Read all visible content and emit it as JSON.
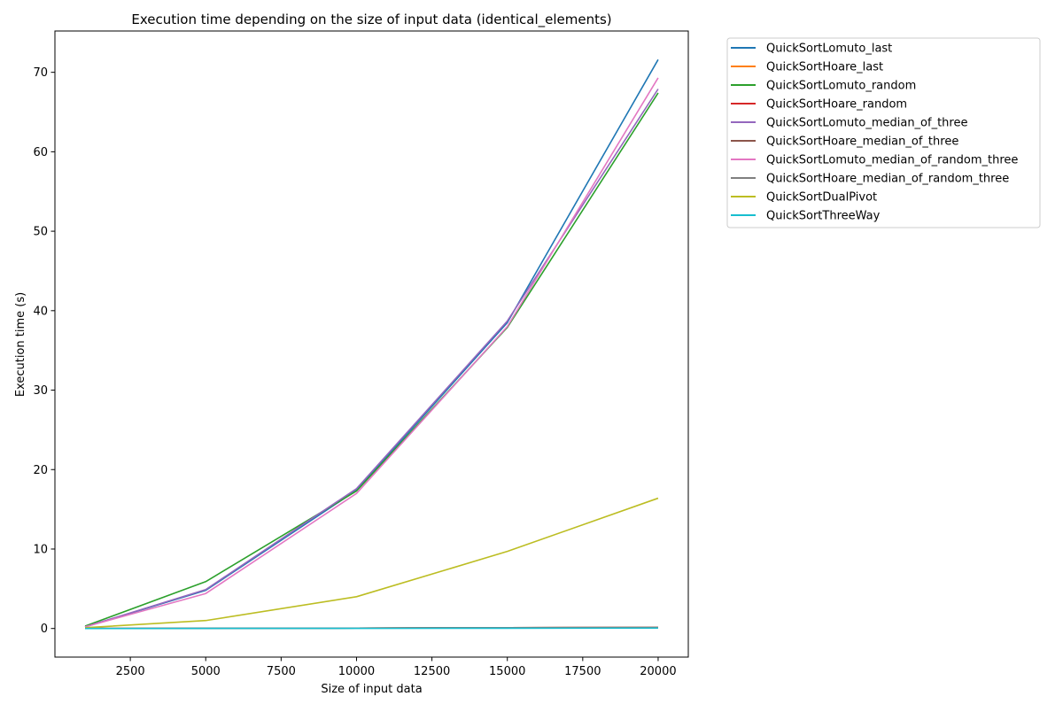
{
  "chart_data": {
    "type": "line",
    "title": "Execution time depending on the size of input data (identical_elements)",
    "xlabel": "Size of input data",
    "ylabel": "Execution time (s)",
    "xlim": [
      0,
      21000
    ],
    "ylim": [
      -3.6,
      75.2
    ],
    "xticks": [
      2500,
      5000,
      7500,
      10000,
      12500,
      15000,
      17500,
      20000
    ],
    "yticks": [
      0,
      10,
      20,
      30,
      40,
      50,
      60,
      70
    ],
    "grid": false,
    "legend_position": "outside right, top",
    "x": [
      1000,
      5000,
      10000,
      15000,
      20000
    ],
    "series": [
      {
        "name": "QuickSortLomuto_last",
        "color": "#1f77b4",
        "values": [
          0.2,
          4.8,
          17.4,
          38.5,
          71.6
        ]
      },
      {
        "name": "QuickSortHoare_last",
        "color": "#ff7f0e",
        "values": [
          0.0,
          0.02,
          0.05,
          0.1,
          0.13
        ]
      },
      {
        "name": "QuickSortLomuto_random",
        "color": "#2ca02c",
        "values": [
          0.3,
          5.9,
          17.3,
          37.9,
          67.4
        ]
      },
      {
        "name": "QuickSortHoare_random",
        "color": "#d62728",
        "values": [
          0.0,
          0.02,
          0.05,
          0.1,
          0.13
        ]
      },
      {
        "name": "QuickSortLomuto_median_of_three",
        "color": "#9467bd",
        "values": [
          0.2,
          4.9,
          17.6,
          38.7,
          67.9
        ]
      },
      {
        "name": "QuickSortHoare_median_of_three",
        "color": "#8c564b",
        "values": [
          0.0,
          0.02,
          0.05,
          0.1,
          0.13
        ]
      },
      {
        "name": "QuickSortLomuto_median_of_random_three",
        "color": "#e377c2",
        "values": [
          0.2,
          4.4,
          17.0,
          38.0,
          69.3
        ]
      },
      {
        "name": "QuickSortHoare_median_of_random_three",
        "color": "#7f7f7f",
        "values": [
          0.0,
          0.02,
          0.05,
          0.1,
          0.13
        ]
      },
      {
        "name": "QuickSortDualPivot",
        "color": "#bcbd22",
        "values": [
          0.1,
          1.0,
          4.0,
          9.7,
          16.4
        ]
      },
      {
        "name": "QuickSortThreeWay",
        "color": "#17becf",
        "values": [
          0.0,
          0.01,
          0.02,
          0.03,
          0.05
        ]
      }
    ]
  }
}
